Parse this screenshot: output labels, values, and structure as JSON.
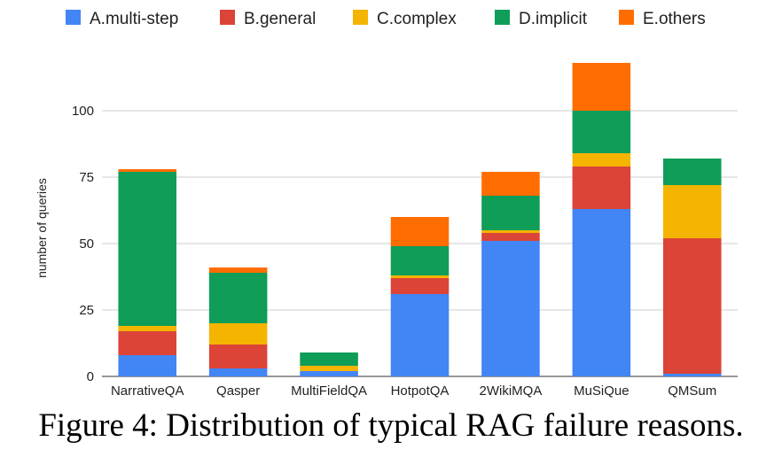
{
  "figure": {
    "caption": "Figure 4: Distribution of typical RAG failure reasons."
  },
  "chart_data": {
    "type": "bar",
    "stacked": true,
    "categories": [
      "NarrativeQA",
      "Qasper",
      "MultiFieldQA",
      "HotpotQA",
      "2WikiMQA",
      "MuSiQue",
      "QMSum"
    ],
    "series": [
      {
        "name": "A.multi-step",
        "color": "#4285f4",
        "values": [
          8,
          3,
          2,
          31,
          51,
          63,
          1
        ]
      },
      {
        "name": "B.general",
        "color": "#db4437",
        "values": [
          9,
          9,
          0,
          6,
          3,
          16,
          51
        ]
      },
      {
        "name": "C.complex",
        "color": "#f4b400",
        "values": [
          2,
          8,
          2,
          1,
          1,
          5,
          20
        ]
      },
      {
        "name": "D.implicit",
        "color": "#0f9d58",
        "values": [
          58,
          19,
          5,
          11,
          13,
          16,
          10
        ]
      },
      {
        "name": "E.others",
        "color": "#ff6d00",
        "values": [
          1,
          2,
          0,
          11,
          9,
          18,
          0
        ]
      }
    ],
    "xlabel": "",
    "ylabel": "number of queries",
    "ylim": [
      0,
      125
    ],
    "yticks": [
      0,
      25,
      50,
      75,
      100
    ],
    "grid": true,
    "legend_position": "top"
  }
}
